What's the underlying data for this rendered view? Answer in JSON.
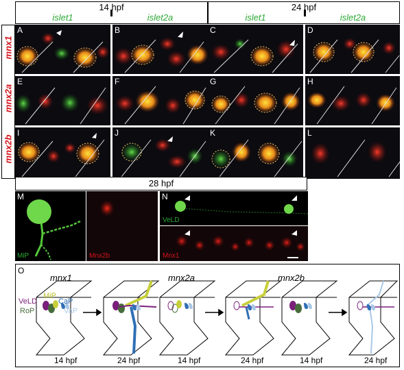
{
  "header": {
    "stage_left": "14 hpf",
    "stage_right": "24 hpf",
    "columns": [
      "islet1",
      "islet2a",
      "islet1",
      "islet2a"
    ]
  },
  "rows": [
    "mnx1",
    "mnx2a",
    "mnx2b"
  ],
  "panels": [
    "A",
    "B",
    "C",
    "D",
    "E",
    "F",
    "G",
    "H",
    "I",
    "J",
    "K",
    "L"
  ],
  "mid": {
    "stage": "28 hpf",
    "M_label": "M",
    "N_label": "N",
    "mip_text": "MiP",
    "mnx2b_text": "Mnx2b",
    "veld_text": "VeLD",
    "mnx1_text": "Mnx1"
  },
  "diagram": {
    "label": "O",
    "titles": [
      "mnx1",
      "mnx2a",
      "mnx2b"
    ],
    "neurons": {
      "veld": "VeLD",
      "mip": "MiP",
      "cap": "CaP",
      "rop": "RoP",
      "vap": "VaP"
    },
    "times": [
      "14 hpf",
      "24 hpf",
      "14 hpf",
      "24 hpf",
      "14 hpf",
      "24 hpf"
    ]
  },
  "colors": {
    "green": "#2ea836",
    "red": "#d4141c",
    "purple": "#7a1f7a",
    "yellow": "#c7cf3a",
    "blue": "#2f6fb5",
    "lightblue": "#a9c8e6",
    "darkgreen": "#476d3a"
  }
}
